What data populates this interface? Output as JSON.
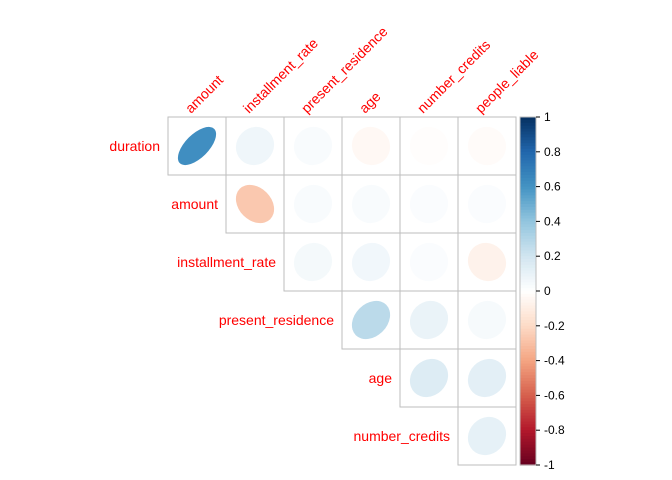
{
  "chart_data": {
    "type": "heatmap",
    "style": "corrplot-ellipse-upper-triangle",
    "title": "",
    "row_labels": [
      "duration",
      "amount",
      "installment_rate",
      "present_residence",
      "age",
      "number_credits"
    ],
    "col_labels": [
      "amount",
      "installment_rate",
      "present_residence",
      "age",
      "number_credits",
      "people_liable"
    ],
    "cells": [
      {
        "row": "duration",
        "col": "amount",
        "value": 0.62
      },
      {
        "row": "duration",
        "col": "installment_rate",
        "value": 0.07
      },
      {
        "row": "duration",
        "col": "present_residence",
        "value": 0.03
      },
      {
        "row": "duration",
        "col": "age",
        "value": -0.04
      },
      {
        "row": "duration",
        "col": "number_credits",
        "value": -0.01
      },
      {
        "row": "duration",
        "col": "people_liable",
        "value": -0.02
      },
      {
        "row": "amount",
        "col": "installment_rate",
        "value": -0.27
      },
      {
        "row": "amount",
        "col": "present_residence",
        "value": 0.03
      },
      {
        "row": "amount",
        "col": "age",
        "value": 0.03
      },
      {
        "row": "amount",
        "col": "number_credits",
        "value": 0.02
      },
      {
        "row": "amount",
        "col": "people_liable",
        "value": 0.02
      },
      {
        "row": "installment_rate",
        "col": "present_residence",
        "value": 0.05
      },
      {
        "row": "installment_rate",
        "col": "age",
        "value": 0.06
      },
      {
        "row": "installment_rate",
        "col": "number_credits",
        "value": 0.02
      },
      {
        "row": "installment_rate",
        "col": "people_liable",
        "value": -0.07
      },
      {
        "row": "present_residence",
        "col": "age",
        "value": 0.27
      },
      {
        "row": "present_residence",
        "col": "number_credits",
        "value": 0.09
      },
      {
        "row": "present_residence",
        "col": "people_liable",
        "value": 0.04
      },
      {
        "row": "age",
        "col": "number_credits",
        "value": 0.15
      },
      {
        "row": "age",
        "col": "people_liable",
        "value": 0.12
      },
      {
        "row": "number_credits",
        "col": "people_liable",
        "value": 0.11
      }
    ],
    "colorbar": {
      "range": [
        -1,
        1
      ],
      "ticks": [
        "1",
        "0.8",
        "0.6",
        "0.4",
        "0.2",
        "0",
        "-0.2",
        "-0.4",
        "-0.6",
        "-0.8",
        "-1"
      ]
    },
    "colors": {
      "labels": "#ff0000",
      "grid": "#bebebe",
      "palette": [
        "#67001f",
        "#b2182b",
        "#d6604d",
        "#f4a582",
        "#fddbc7",
        "#ffffff",
        "#d1e5f0",
        "#92c5de",
        "#4393c3",
        "#2166ac",
        "#053061"
      ]
    }
  }
}
